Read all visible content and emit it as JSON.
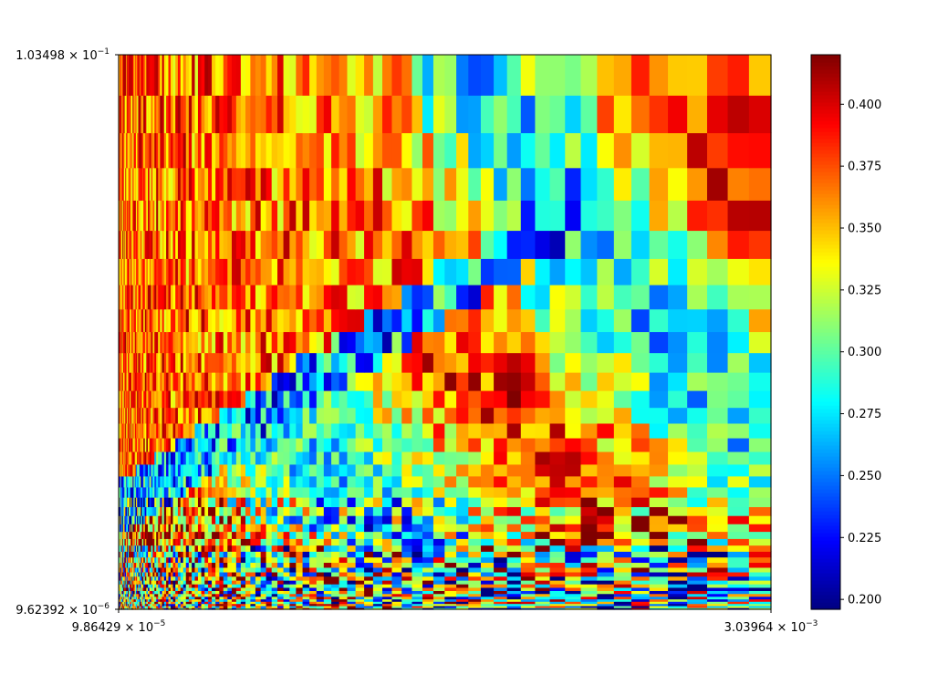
{
  "chart_data": {
    "type": "heatmap",
    "title": "",
    "xlabel": "",
    "ylabel": "",
    "x_scale": "log",
    "y_scale": "log",
    "xlim": [
      9.86429e-05,
      0.00303964
    ],
    "ylim": [
      9.62392e-06,
      0.103498
    ],
    "x_tick_labels": [
      {
        "mantissa": "9.86429",
        "exponent": "−5"
      },
      {
        "mantissa": "3.03964",
        "exponent": "−3"
      }
    ],
    "y_tick_labels": [
      {
        "mantissa": "9.62392",
        "exponent": "−6"
      },
      {
        "mantissa": "1.03498",
        "exponent": "−1"
      }
    ],
    "colormap": "jet",
    "color_range": [
      0.196,
      0.42
    ],
    "colorbar_ticks": [
      0.2,
      0.225,
      0.25,
      0.275,
      0.3,
      0.325,
      0.35,
      0.375,
      0.4
    ],
    "colorbar_tick_labels": [
      "0.200",
      "0.225",
      "0.250",
      "0.275",
      "0.300",
      "0.325",
      "0.350",
      "0.375",
      "0.400"
    ],
    "grid": false,
    "colorbar_position": "right"
  }
}
